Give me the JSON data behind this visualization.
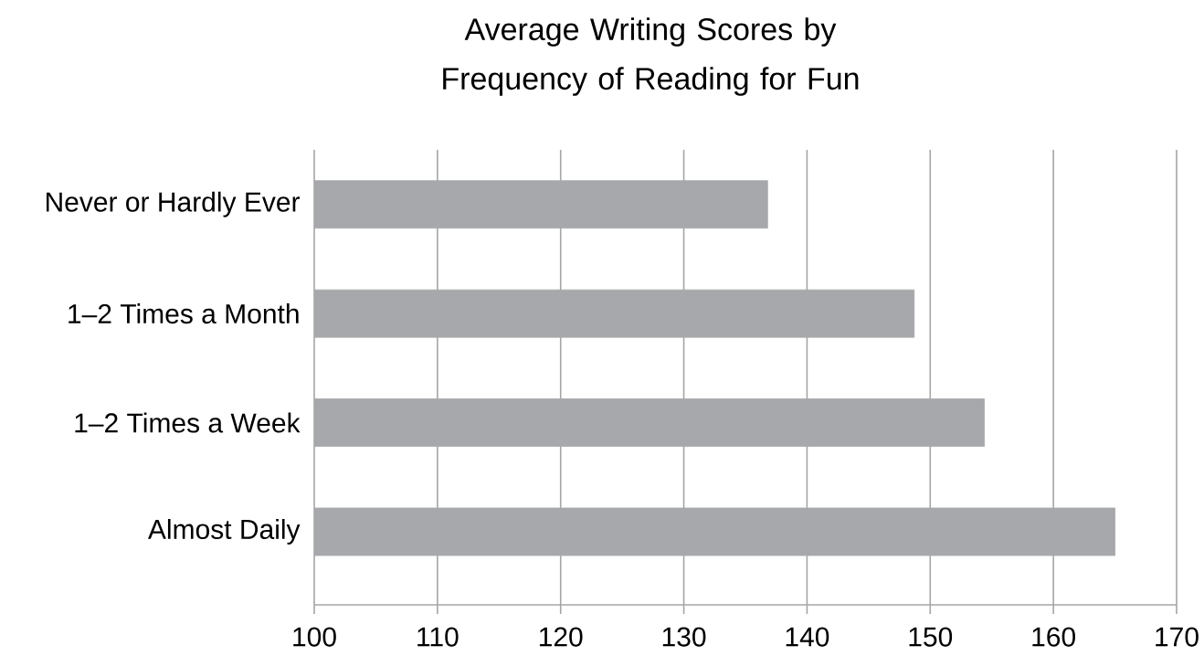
{
  "chart_data": {
    "type": "bar",
    "orientation": "horizontal",
    "title": "Average Writing Scores by Frequency of Reading for Fun",
    "categories": [
      "Never or Hardly Ever",
      "1–2 Times a Month",
      "1–2 Times a Week",
      "Almost Daily"
    ],
    "values": [
      136.8,
      148.7,
      154.4,
      165
    ],
    "color": "#a7a8ab",
    "xlim": [
      100,
      170
    ],
    "xticks": [
      100,
      110,
      120,
      130,
      140,
      150,
      160,
      170
    ],
    "grid": "x"
  }
}
